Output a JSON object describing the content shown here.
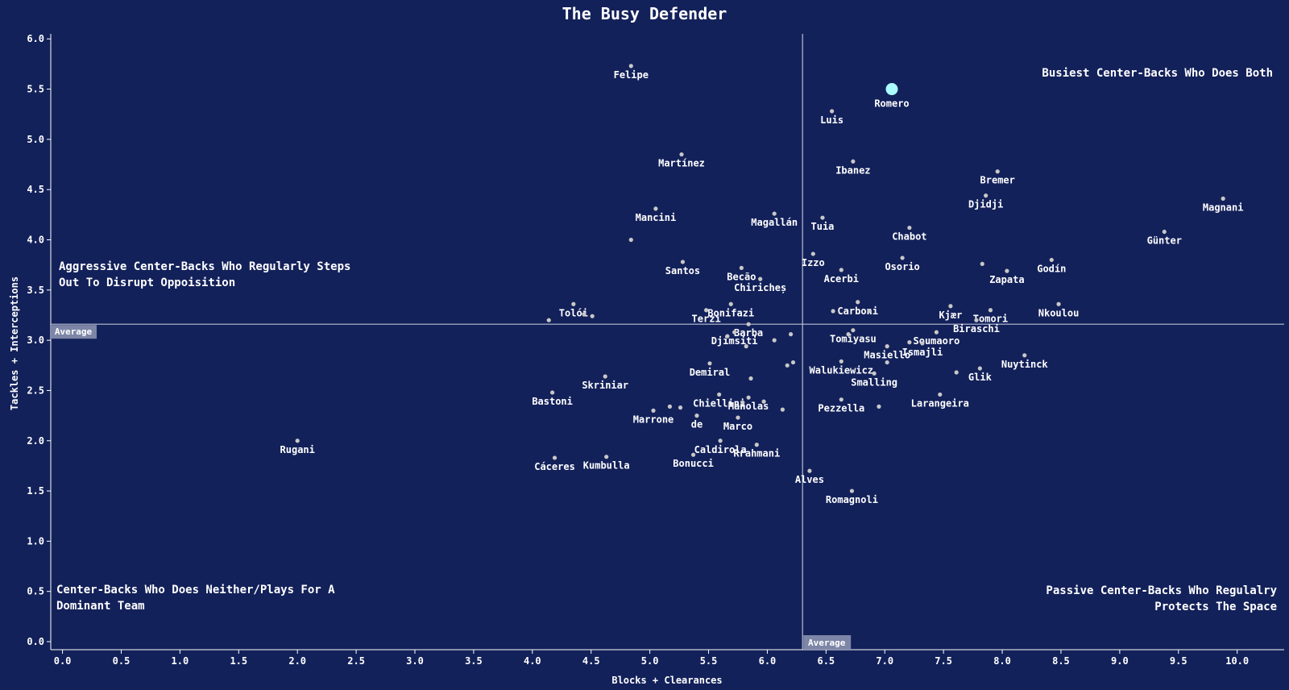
{
  "chart_data": {
    "type": "scatter",
    "title": "The Busy Defender",
    "xlabel": "Blocks + Clearances",
    "ylabel": "Tackles + Interceptions",
    "xlim": [
      -0.1,
      10.4
    ],
    "ylim": [
      -0.08,
      6.05
    ],
    "xticks": [
      0.0,
      0.5,
      1.0,
      1.5,
      2.0,
      2.5,
      3.0,
      3.5,
      4.0,
      4.5,
      5.0,
      5.5,
      6.0,
      6.5,
      7.0,
      7.5,
      8.0,
      8.5,
      9.0,
      9.5,
      10.0
    ],
    "yticks": [
      0.0,
      0.5,
      1.0,
      1.5,
      2.0,
      2.5,
      3.0,
      3.5,
      4.0,
      4.5,
      5.0,
      5.5,
      6.0
    ],
    "x_average": 6.3,
    "y_average": 3.16,
    "average_label": "Average",
    "grid": false,
    "colors": {
      "background": "#13215a",
      "point": "#c8c8c8",
      "highlight": "#aafcff",
      "average_line": "#b9bfd6",
      "average_tag": "#7d86a7"
    },
    "quadrant_labels": {
      "top_left": [
        "Aggressive Center-Backs Who Regularly Steps",
        "Out To Disrupt Oppoisition"
      ],
      "top_right": [
        "Busiest Center-Backs Who Does Both"
      ],
      "bottom_left": [
        "Center-Backs Who Does Neither/Plays For A",
        "Dominant Team"
      ],
      "bottom_right": [
        "Passive Center-Backs Who Regulalry",
        "Protects The Space"
      ]
    },
    "highlight": {
      "name": "Romero",
      "x": 7.06,
      "y": 5.5
    },
    "points": [
      {
        "name": "Felipe",
        "x": 4.84,
        "y": 5.73
      },
      {
        "name": "Luis",
        "x": 6.55,
        "y": 5.28
      },
      {
        "name": "Martínez",
        "x": 5.27,
        "y": 4.85
      },
      {
        "name": "Ibanez",
        "x": 6.73,
        "y": 4.78
      },
      {
        "name": "Bremer",
        "x": 7.96,
        "y": 4.68
      },
      {
        "name": "Djidji",
        "x": 7.86,
        "y": 4.44
      },
      {
        "name": "Magnani",
        "x": 9.88,
        "y": 4.41
      },
      {
        "name": "Mancini",
        "x": 5.05,
        "y": 4.31
      },
      {
        "name": "Magallán",
        "x": 6.06,
        "y": 4.26
      },
      {
        "name": "Tuia",
        "x": 6.47,
        "y": 4.22
      },
      {
        "name": "Chabot",
        "x": 7.21,
        "y": 4.12
      },
      {
        "name": "Günter",
        "x": 9.38,
        "y": 4.08
      },
      {
        "name": "",
        "x": 4.84,
        "y": 4.0
      },
      {
        "name": "Izzo",
        "x": 6.39,
        "y": 3.86
      },
      {
        "name": "Osorio",
        "x": 7.15,
        "y": 3.82
      },
      {
        "name": "Santos",
        "x": 5.28,
        "y": 3.78
      },
      {
        "name": "",
        "x": 7.83,
        "y": 3.76
      },
      {
        "name": "Godín",
        "x": 8.42,
        "y": 3.8
      },
      {
        "name": "Becão",
        "x": 5.78,
        "y": 3.72
      },
      {
        "name": "Acerbi",
        "x": 6.63,
        "y": 3.7
      },
      {
        "name": "Zapata",
        "x": 8.04,
        "y": 3.69
      },
      {
        "name": "Chiricheș",
        "x": 5.94,
        "y": 3.61
      },
      {
        "name": "Carboni",
        "x": 6.77,
        "y": 3.38
      },
      {
        "name": "Tolói",
        "x": 4.35,
        "y": 3.36
      },
      {
        "name": "Bonifazi",
        "x": 5.69,
        "y": 3.36
      },
      {
        "name": "Kjær",
        "x": 7.56,
        "y": 3.34
      },
      {
        "name": "Nkoulou",
        "x": 8.48,
        "y": 3.36
      },
      {
        "name": "Tomori",
        "x": 7.9,
        "y": 3.3
      },
      {
        "name": "Terzi",
        "x": 5.48,
        "y": 3.3
      },
      {
        "name": "",
        "x": 6.56,
        "y": 3.29
      },
      {
        "name": "",
        "x": 6.87,
        "y": 3.29
      },
      {
        "name": "",
        "x": 4.44,
        "y": 3.26
      },
      {
        "name": "",
        "x": 4.51,
        "y": 3.24
      },
      {
        "name": "",
        "x": 4.14,
        "y": 3.2
      },
      {
        "name": "Biraschi",
        "x": 7.78,
        "y": 3.2
      },
      {
        "name": "Barba",
        "x": 5.84,
        "y": 3.16
      },
      {
        "name": "Tomiyasu",
        "x": 6.73,
        "y": 3.1
      },
      {
        "name": "",
        "x": 6.69,
        "y": 3.06
      },
      {
        "name": "Soumaoro",
        "x": 7.44,
        "y": 3.08
      },
      {
        "name": "Djimsiti",
        "x": 5.72,
        "y": 3.08
      },
      {
        "name": "",
        "x": 5.66,
        "y": 3.04
      },
      {
        "name": "",
        "x": 6.2,
        "y": 3.06
      },
      {
        "name": "",
        "x": 6.06,
        "y": 3.0
      },
      {
        "name": "Masiello",
        "x": 7.02,
        "y": 2.94
      },
      {
        "name": "",
        "x": 7.21,
        "y": 2.98
      },
      {
        "name": "Ismajli",
        "x": 7.32,
        "y": 2.97
      },
      {
        "name": "",
        "x": 5.82,
        "y": 2.94
      },
      {
        "name": "Nuytinck",
        "x": 8.19,
        "y": 2.85
      },
      {
        "name": "Walukiewicz",
        "x": 6.63,
        "y": 2.79
      },
      {
        "name": "",
        "x": 7.02,
        "y": 2.78
      },
      {
        "name": "",
        "x": 6.22,
        "y": 2.78
      },
      {
        "name": "",
        "x": 6.17,
        "y": 2.75
      },
      {
        "name": "Demiral",
        "x": 5.51,
        "y": 2.77
      },
      {
        "name": "Glik",
        "x": 7.81,
        "y": 2.72
      },
      {
        "name": "",
        "x": 7.61,
        "y": 2.68
      },
      {
        "name": "Smalling",
        "x": 6.91,
        "y": 2.67
      },
      {
        "name": "Skriniar",
        "x": 4.62,
        "y": 2.64
      },
      {
        "name": "",
        "x": 5.86,
        "y": 2.62
      },
      {
        "name": "Bastoni",
        "x": 4.17,
        "y": 2.48
      },
      {
        "name": "Chiellini",
        "x": 5.59,
        "y": 2.46
      },
      {
        "name": "Larangeira",
        "x": 7.47,
        "y": 2.46
      },
      {
        "name": "Manolas",
        "x": 5.84,
        "y": 2.43
      },
      {
        "name": "Pezzella",
        "x": 6.63,
        "y": 2.41
      },
      {
        "name": "",
        "x": 5.97,
        "y": 2.39
      },
      {
        "name": "",
        "x": 5.79,
        "y": 2.38
      },
      {
        "name": "",
        "x": 6.95,
        "y": 2.34
      },
      {
        "name": "",
        "x": 5.17,
        "y": 2.34
      },
      {
        "name": "",
        "x": 5.26,
        "y": 2.33
      },
      {
        "name": "Marrone",
        "x": 5.03,
        "y": 2.3
      },
      {
        "name": "",
        "x": 6.13,
        "y": 2.31
      },
      {
        "name": "de",
        "x": 5.4,
        "y": 2.25
      },
      {
        "name": "Marco",
        "x": 5.75,
        "y": 2.23
      },
      {
        "name": "Caldirola",
        "x": 5.6,
        "y": 2.0
      },
      {
        "name": "Rugani",
        "x": 2.0,
        "y": 2.0
      },
      {
        "name": "Rrahmani",
        "x": 5.91,
        "y": 1.96
      },
      {
        "name": "Bonucci",
        "x": 5.37,
        "y": 1.86
      },
      {
        "name": "Kumbulla",
        "x": 4.63,
        "y": 1.84
      },
      {
        "name": "Cáceres",
        "x": 4.19,
        "y": 1.83
      },
      {
        "name": "Alves",
        "x": 6.36,
        "y": 1.7
      },
      {
        "name": "Romagnoli",
        "x": 6.72,
        "y": 1.5
      }
    ]
  }
}
